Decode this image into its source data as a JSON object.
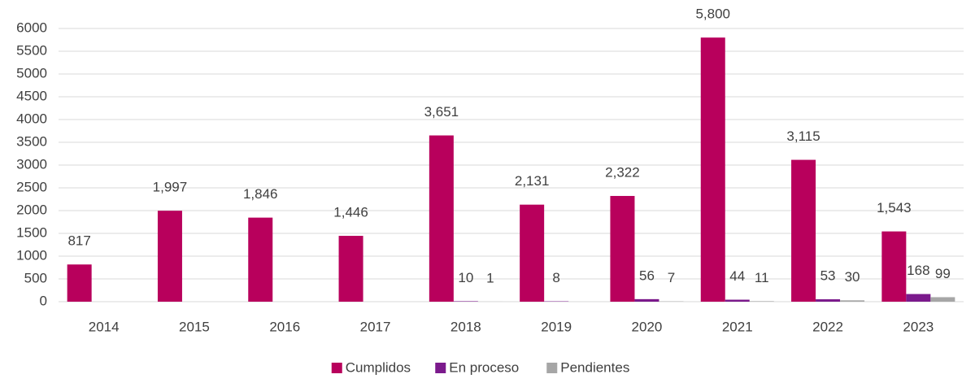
{
  "chart_data": {
    "type": "bar",
    "categories": [
      "2014",
      "2015",
      "2016",
      "2017",
      "2018",
      "2019",
      "2020",
      "2021",
      "2022",
      "2023"
    ],
    "series": [
      {
        "name": "Cumplidos",
        "color": "#b8005c",
        "values": [
          817,
          1997,
          1846,
          1446,
          3651,
          2131,
          2322,
          5800,
          3115,
          1543
        ],
        "value_labels": [
          "817",
          "1,997",
          "1,846",
          "1,446",
          "3,651",
          "2,131",
          "2,322",
          "5,800",
          "3,115",
          "1,543"
        ]
      },
      {
        "name": "En proceso",
        "color": "#7b1a8c",
        "values": [
          null,
          null,
          null,
          null,
          10,
          8,
          56,
          44,
          53,
          168
        ]
      },
      {
        "name": "Pendientes",
        "color": "#a6a6a6",
        "values": [
          null,
          null,
          null,
          null,
          1,
          null,
          7,
          11,
          30,
          99
        ]
      }
    ],
    "ylim": [
      0,
      6000
    ],
    "yticks": [
      0,
      500,
      1000,
      1500,
      2000,
      2500,
      3000,
      3500,
      4000,
      4500,
      5000,
      5500,
      6000
    ],
    "grid": true,
    "legend": "bottom"
  }
}
